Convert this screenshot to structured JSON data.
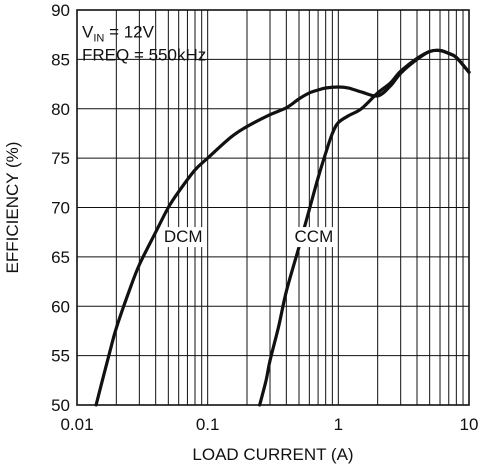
{
  "chart_data": {
    "type": "line",
    "xlabel": "LOAD CURRENT (A)",
    "ylabel": "EFFICIENCY (%)",
    "xscale": "log",
    "xlim": [
      0.01,
      10
    ],
    "ylim": [
      50,
      90
    ],
    "xticks": [
      0.01,
      0.1,
      1,
      10
    ],
    "xtick_labels": [
      "0.01",
      "0.1",
      "1",
      "10"
    ],
    "yticks": [
      50,
      55,
      60,
      65,
      70,
      75,
      80,
      85,
      90
    ],
    "ytick_labels": [
      "50",
      "55",
      "60",
      "65",
      "70",
      "75",
      "80",
      "85",
      "90"
    ],
    "grid": true,
    "annotations": {
      "vin_prefix": "V",
      "vin_subscript": "IN",
      "vin_suffix": " = 12V",
      "freq": "FREQ = 550kHz"
    },
    "series": [
      {
        "name": "DCM",
        "x": [
          0.014,
          0.016,
          0.018,
          0.02,
          0.025,
          0.03,
          0.04,
          0.05,
          0.06,
          0.08,
          0.1,
          0.15,
          0.2,
          0.3,
          0.4,
          0.5,
          0.6,
          0.7,
          0.8,
          1.0,
          1.2,
          1.5,
          2.0,
          2.5,
          3.0,
          4.0,
          5.0,
          6.0,
          7.0,
          8.0,
          10.0
        ],
        "y": [
          50.0,
          53.0,
          55.6,
          57.8,
          61.5,
          64.2,
          67.5,
          70.0,
          71.6,
          73.8,
          75.0,
          77.1,
          78.2,
          79.4,
          80.1,
          81.0,
          81.6,
          81.9,
          82.1,
          82.2,
          82.1,
          81.7,
          81.3,
          82.3,
          83.6,
          85.0,
          85.8,
          85.9,
          85.6,
          85.2,
          83.7
        ]
      },
      {
        "name": "CCM",
        "x": [
          0.25,
          0.28,
          0.3,
          0.35,
          0.4,
          0.5,
          0.6,
          0.7,
          0.8,
          0.9,
          1.0,
          1.2,
          1.5,
          2.0,
          2.5,
          3.0,
          4.0,
          5.0,
          6.0,
          7.0,
          8.0,
          10.0
        ],
        "y": [
          50.0,
          52.5,
          54.5,
          58.0,
          61.5,
          66.0,
          69.8,
          73.0,
          75.5,
          77.5,
          78.6,
          79.3,
          80.0,
          81.6,
          82.6,
          83.8,
          85.1,
          85.8,
          85.9,
          85.6,
          85.2,
          83.7
        ]
      }
    ]
  }
}
